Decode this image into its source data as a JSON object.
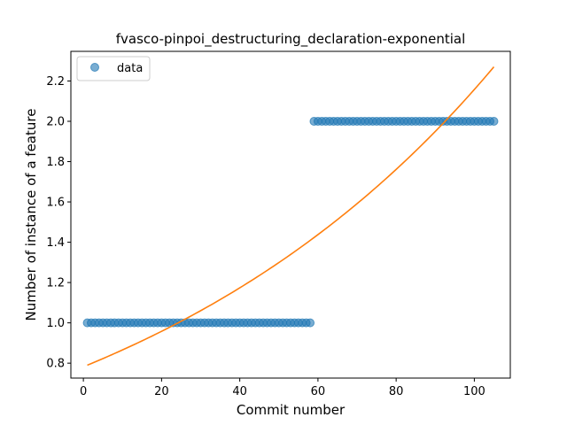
{
  "chart_data": {
    "type": "scatter",
    "title": "fvasco-pinpoi_destructuring_declaration-exponential",
    "xlabel": "Commit number",
    "ylabel": "Number of instance of a feature",
    "xlim": [
      -3.2,
      109.2
    ],
    "ylim": [
      0.726,
      2.347
    ],
    "xticks": [
      0,
      20,
      40,
      60,
      80,
      100
    ],
    "yticks": [
      0.8,
      1.0,
      1.2,
      1.4,
      1.6,
      1.8,
      2.0,
      2.2
    ],
    "xtick_labels": [
      "0",
      "20",
      "40",
      "60",
      "80",
      "100"
    ],
    "ytick_labels": [
      "0.8",
      "1.0",
      "1.2",
      "1.4",
      "1.6",
      "1.8",
      "2.0",
      "2.2"
    ],
    "grid": false,
    "legend": {
      "placement": "top-left",
      "entries": [
        "data"
      ]
    },
    "series": [
      {
        "name": "data",
        "kind": "scatter",
        "color": "#1f77b4",
        "segments": [
          {
            "x_start": 1,
            "x_end": 58,
            "y": 1.0
          },
          {
            "x_start": 59,
            "x_end": 105,
            "y": 2.0
          }
        ]
      },
      {
        "kind": "line",
        "model": "exponential",
        "color": "#ff7f0e",
        "x_range": [
          1,
          105
        ],
        "y_start": 0.79,
        "y_end": 2.27
      }
    ]
  }
}
